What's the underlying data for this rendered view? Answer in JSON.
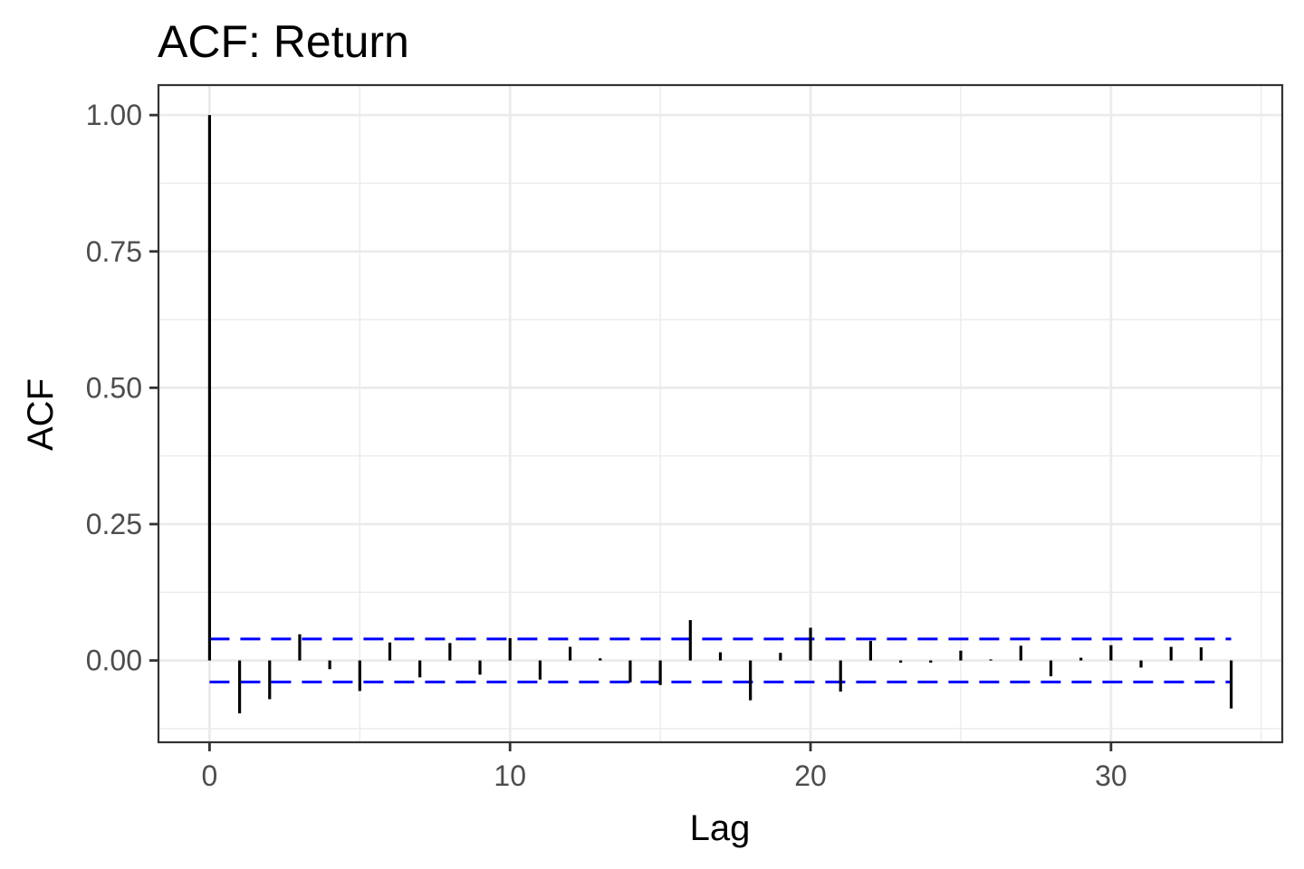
{
  "chart_data": {
    "type": "bar",
    "title": "ACF: Return",
    "xlabel": "Lag",
    "ylabel": "ACF",
    "xlim": [
      -1.7,
      35.7
    ],
    "ylim": [
      -0.15,
      1.055
    ],
    "x_ticks": [
      0,
      10,
      20,
      30
    ],
    "y_ticks": [
      0.0,
      0.25,
      0.5,
      0.75,
      1.0
    ],
    "x_tick_labels": [
      "0",
      "10",
      "20",
      "30"
    ],
    "y_tick_labels": [
      "0.00",
      "0.25",
      "0.50",
      "0.75",
      "1.00"
    ],
    "grid": true,
    "legend": "none",
    "lags": [
      0,
      1,
      2,
      3,
      4,
      5,
      6,
      7,
      8,
      9,
      10,
      11,
      12,
      13,
      14,
      15,
      16,
      17,
      18,
      19,
      20,
      21,
      22,
      23,
      24,
      25,
      26,
      27,
      28,
      29,
      30,
      31,
      32,
      33,
      34
    ],
    "values": [
      1.0,
      -0.097,
      -0.071,
      0.048,
      -0.016,
      -0.056,
      0.033,
      -0.031,
      0.032,
      -0.026,
      0.041,
      -0.035,
      0.025,
      0.004,
      -0.04,
      -0.045,
      0.074,
      0.015,
      -0.073,
      0.014,
      0.06,
      -0.057,
      0.036,
      -0.004,
      -0.004,
      0.018,
      0.002,
      0.027,
      -0.029,
      0.005,
      0.028,
      -0.013,
      0.025,
      0.024,
      -0.088
    ],
    "confidence_bounds": [
      0.0395,
      -0.0395
    ],
    "colors": {
      "bars": "#000000",
      "confidence": "#0000ff",
      "grid": "#ebebeb",
      "border": "#333333"
    }
  }
}
